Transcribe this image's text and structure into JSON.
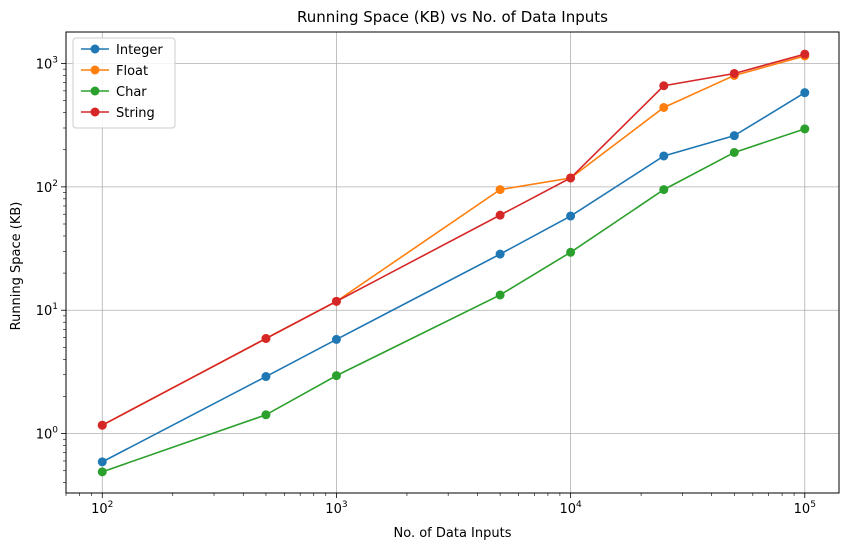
{
  "chart_data": {
    "type": "line",
    "title": "Running Space (KB) vs No. of Data Inputs",
    "xlabel": "No. of Data Inputs",
    "ylabel": "Running Space (KB)",
    "xscale": "log",
    "yscale": "log",
    "xlim": [
      70,
      140000
    ],
    "ylim": [
      0.33,
      1800
    ],
    "x_ticks": [
      {
        "value": 100,
        "base": "10",
        "exp": "2"
      },
      {
        "value": 1000,
        "base": "10",
        "exp": "3"
      },
      {
        "value": 10000,
        "base": "10",
        "exp": "4"
      },
      {
        "value": 100000,
        "base": "10",
        "exp": "5"
      }
    ],
    "y_ticks": [
      {
        "value": 1,
        "base": "10",
        "exp": "0"
      },
      {
        "value": 10,
        "base": "10",
        "exp": "1"
      },
      {
        "value": 100,
        "base": "10",
        "exp": "2"
      },
      {
        "value": 1000,
        "base": "10",
        "exp": "3"
      }
    ],
    "grid": true,
    "legend_position": "top-left",
    "markers": true,
    "x": [
      100,
      500,
      1000,
      5000,
      10000,
      25000,
      50000,
      100000
    ],
    "series": [
      {
        "name": "Integer",
        "color": "#1f77b4",
        "values": [
          0.59,
          2.9,
          5.8,
          28.5,
          58,
          178,
          260,
          580
        ]
      },
      {
        "name": "Float",
        "color": "#ff7f0e",
        "values": [
          1.17,
          5.9,
          11.8,
          95,
          118,
          440,
          800,
          1150
        ]
      },
      {
        "name": "Char",
        "color": "#2ca02c",
        "values": [
          0.49,
          1.42,
          2.95,
          13.3,
          29.5,
          95,
          190,
          295
        ]
      },
      {
        "name": "String",
        "color": "#d62728",
        "values": [
          1.17,
          5.9,
          11.8,
          59,
          118,
          660,
          830,
          1190
        ]
      }
    ]
  }
}
